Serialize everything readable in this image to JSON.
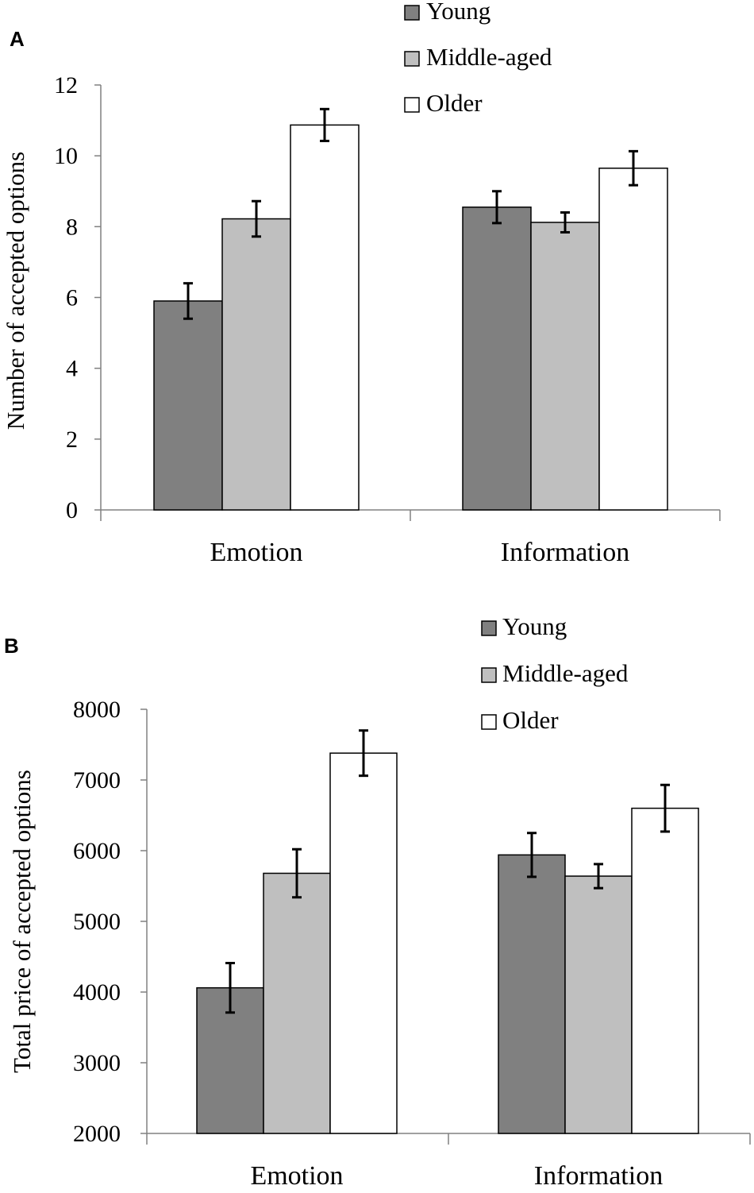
{
  "chart_data": [
    {
      "panel": "A",
      "type": "bar",
      "title": "",
      "xlabel": "",
      "ylabel": "Number of accepted options",
      "categories": [
        "Emotion",
        "Information"
      ],
      "series": [
        {
          "name": "Young",
          "values": [
            5.9,
            8.55
          ],
          "errors": [
            0.5,
            0.45
          ],
          "color": "#808080"
        },
        {
          "name": "Middle-aged",
          "values": [
            8.22,
            8.12
          ],
          "errors": [
            0.5,
            0.28
          ],
          "color": "#bfbfbf"
        },
        {
          "name": "Older",
          "values": [
            10.87,
            9.65
          ],
          "errors": [
            0.45,
            0.48
          ],
          "color": "#ffffff"
        }
      ],
      "ylim": [
        0,
        12
      ],
      "yticks": [
        0,
        2,
        4,
        6,
        8,
        10,
        12
      ],
      "legend_position": "top-right",
      "grid": false
    },
    {
      "panel": "B",
      "type": "bar",
      "title": "",
      "xlabel": "",
      "ylabel": "Total price of accepted options",
      "categories": [
        "Emotion",
        "Information"
      ],
      "series": [
        {
          "name": "Young",
          "values": [
            4060,
            5940
          ],
          "errors": [
            350,
            310
          ],
          "color": "#808080"
        },
        {
          "name": "Middle-aged",
          "values": [
            5680,
            5640
          ],
          "errors": [
            340,
            170
          ],
          "color": "#bfbfbf"
        },
        {
          "name": "Older",
          "values": [
            7380,
            6600
          ],
          "errors": [
            320,
            330
          ],
          "color": "#ffffff"
        }
      ],
      "ylim": [
        2000,
        8000
      ],
      "yticks": [
        2000,
        3000,
        4000,
        5000,
        6000,
        7000,
        8000
      ],
      "legend_position": "top-right",
      "grid": false
    }
  ]
}
